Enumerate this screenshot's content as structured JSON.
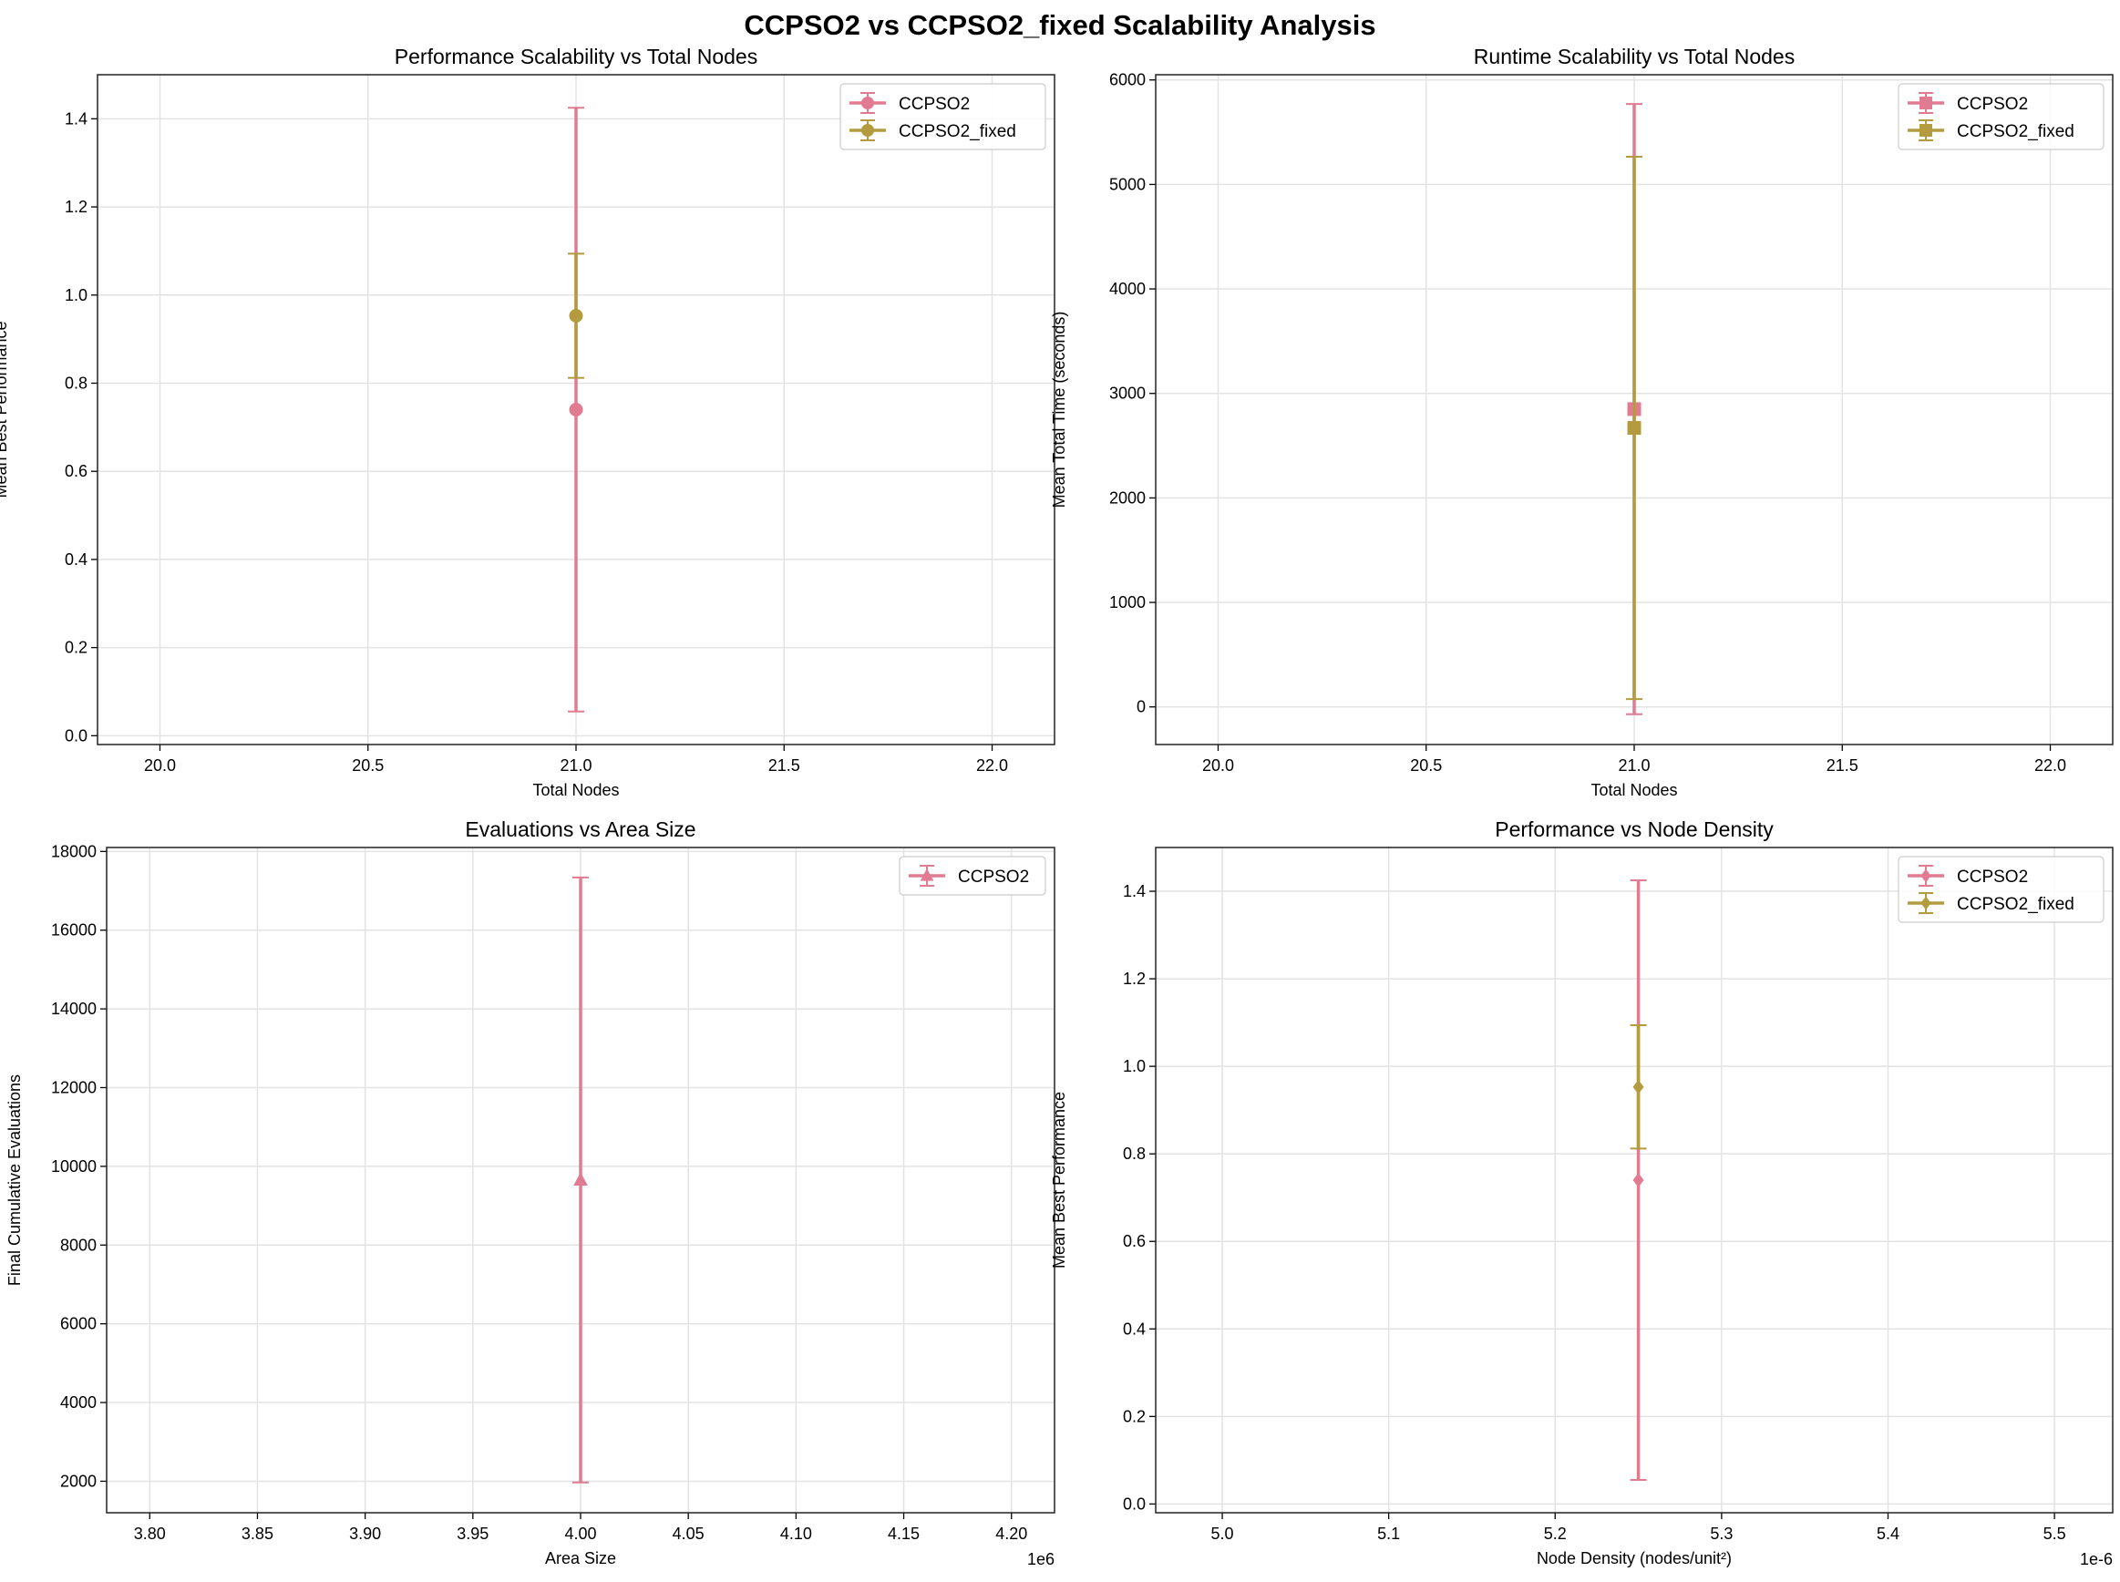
{
  "title": "CCPSO2 vs CCPSO2_fixed Scalability Analysis",
  "colors": {
    "CCPSO2": "#e07b91",
    "CCPSO2_fixed": "#b59b3f"
  },
  "chart_data": [
    {
      "type": "errorbar",
      "title": "Performance Scalability vs Total Nodes",
      "xlabel": "Total Nodes",
      "ylabel": "Mean Best Performance",
      "xlim": [
        19.85,
        22.15
      ],
      "ylim": [
        -0.02,
        1.5
      ],
      "xticks": [
        20.0,
        20.5,
        21.0,
        21.5,
        22.0
      ],
      "xtick_labels": [
        "20.0",
        "20.5",
        "21.0",
        "21.5",
        "22.0"
      ],
      "yticks": [
        0.0,
        0.2,
        0.4,
        0.6,
        0.8,
        1.0,
        1.2,
        1.4
      ],
      "ytick_labels": [
        "0.0",
        "0.2",
        "0.4",
        "0.6",
        "0.8",
        "1.0",
        "1.2",
        "1.4"
      ],
      "x_offset_label": "",
      "grid": true,
      "legend_position": "upper right",
      "series": [
        {
          "name": "CCPSO2",
          "marker": "circle",
          "x": [
            21.0
          ],
          "y": [
            0.74
          ],
          "yerr_low": [
            0.055
          ],
          "yerr_high": [
            1.425
          ]
        },
        {
          "name": "CCPSO2_fixed",
          "marker": "circle",
          "x": [
            21.0
          ],
          "y": [
            0.953
          ],
          "yerr_low": [
            0.812
          ],
          "yerr_high": [
            1.094
          ]
        }
      ]
    },
    {
      "type": "errorbar",
      "title": "Runtime Scalability vs Total Nodes",
      "xlabel": "Total Nodes",
      "ylabel": "Mean Total Time (seconds)",
      "xlim": [
        19.85,
        22.15
      ],
      "ylim": [
        -360,
        6050
      ],
      "xticks": [
        20.0,
        20.5,
        21.0,
        21.5,
        22.0
      ],
      "xtick_labels": [
        "20.0",
        "20.5",
        "21.0",
        "21.5",
        "22.0"
      ],
      "yticks": [
        0,
        1000,
        2000,
        3000,
        4000,
        5000,
        6000
      ],
      "ytick_labels": [
        "0",
        "1000",
        "2000",
        "3000",
        "4000",
        "5000",
        "6000"
      ],
      "x_offset_label": "",
      "grid": true,
      "legend_position": "upper right",
      "series": [
        {
          "name": "CCPSO2",
          "marker": "square",
          "x": [
            21.0
          ],
          "y": [
            2850
          ],
          "yerr_low": [
            -70
          ],
          "yerr_high": [
            5770
          ]
        },
        {
          "name": "CCPSO2_fixed",
          "marker": "square",
          "x": [
            21.0
          ],
          "y": [
            2670
          ],
          "yerr_low": [
            75
          ],
          "yerr_high": [
            5265
          ]
        }
      ]
    },
    {
      "type": "errorbar",
      "title": "Evaluations vs Area Size",
      "xlabel": "Area Size",
      "ylabel": "Final Cumulative Evaluations",
      "xlim": [
        3.78,
        4.22
      ],
      "ylim": [
        1200,
        18100
      ],
      "xticks": [
        3.8,
        3.85,
        3.9,
        3.95,
        4.0,
        4.05,
        4.1,
        4.15,
        4.2
      ],
      "xtick_labels": [
        "3.80",
        "3.85",
        "3.90",
        "3.95",
        "4.00",
        "4.05",
        "4.10",
        "4.15",
        "4.20"
      ],
      "yticks": [
        2000,
        4000,
        6000,
        8000,
        10000,
        12000,
        14000,
        16000,
        18000
      ],
      "ytick_labels": [
        "2000",
        "4000",
        "6000",
        "8000",
        "10000",
        "12000",
        "14000",
        "16000",
        "18000"
      ],
      "x_offset_label": "1e6",
      "grid": true,
      "legend_position": "upper right",
      "series": [
        {
          "name": "CCPSO2",
          "marker": "triangle",
          "x": [
            4.0
          ],
          "y": [
            9650
          ],
          "yerr_low": [
            1970
          ],
          "yerr_high": [
            17340
          ]
        }
      ]
    },
    {
      "type": "errorbar",
      "title": "Performance vs Node Density",
      "xlabel": "Node Density (nodes/unit²)",
      "ylabel": "Mean Best Performance",
      "xlim": [
        4.96,
        5.535
      ],
      "ylim": [
        -0.02,
        1.5
      ],
      "xticks": [
        5.0,
        5.1,
        5.2,
        5.3,
        5.4,
        5.5
      ],
      "xtick_labels": [
        "5.0",
        "5.1",
        "5.2",
        "5.3",
        "5.4",
        "5.5"
      ],
      "yticks": [
        0.0,
        0.2,
        0.4,
        0.6,
        0.8,
        1.0,
        1.2,
        1.4
      ],
      "ytick_labels": [
        "0.0",
        "0.2",
        "0.4",
        "0.6",
        "0.8",
        "1.0",
        "1.2",
        "1.4"
      ],
      "x_offset_label": "1e-6",
      "grid": true,
      "legend_position": "upper right",
      "series": [
        {
          "name": "CCPSO2",
          "marker": "diamond",
          "x": [
            5.25
          ],
          "y": [
            0.74
          ],
          "yerr_low": [
            0.055
          ],
          "yerr_high": [
            1.425
          ]
        },
        {
          "name": "CCPSO2_fixed",
          "marker": "diamond",
          "x": [
            5.25
          ],
          "y": [
            0.953
          ],
          "yerr_low": [
            0.812
          ],
          "yerr_high": [
            1.094
          ]
        }
      ]
    }
  ]
}
